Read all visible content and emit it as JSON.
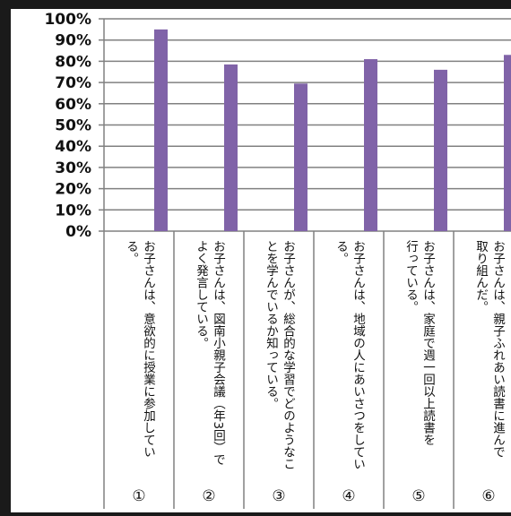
{
  "chart_data": {
    "type": "bar",
    "categories": [
      "お子さんは、意欲的に授業に参加してい\nる。",
      "お子さんは、図南小親子会議（年3回）で\nよく発言している。",
      "お子さんが、総合的な学習でどのようなこ\nとを学んでいるか知っている。",
      "お子さんは、地域の人にあいさつをしてい\nる。",
      "お子さんは、家庭で週一回以上読書を\n行っている。",
      "お子さんは、親子ふれあい読書に進んで\n取り組んだ。"
    ],
    "category_numbers": [
      "①",
      "②",
      "③",
      "④",
      "⑤",
      "⑥"
    ],
    "values": [
      0.95,
      0.785,
      0.695,
      0.81,
      0.76,
      0.83
    ],
    "ylim": [
      0,
      1
    ],
    "yticks": [
      "0%",
      "10%",
      "20%",
      "30%",
      "40%",
      "50%",
      "60%",
      "70%",
      "80%",
      "90%",
      "100%"
    ],
    "grid": true,
    "legend": "none",
    "colors": {
      "bar": "#8063a8",
      "grid": "#808080",
      "axis": "#808080",
      "frame": "#1a1a1a"
    }
  }
}
